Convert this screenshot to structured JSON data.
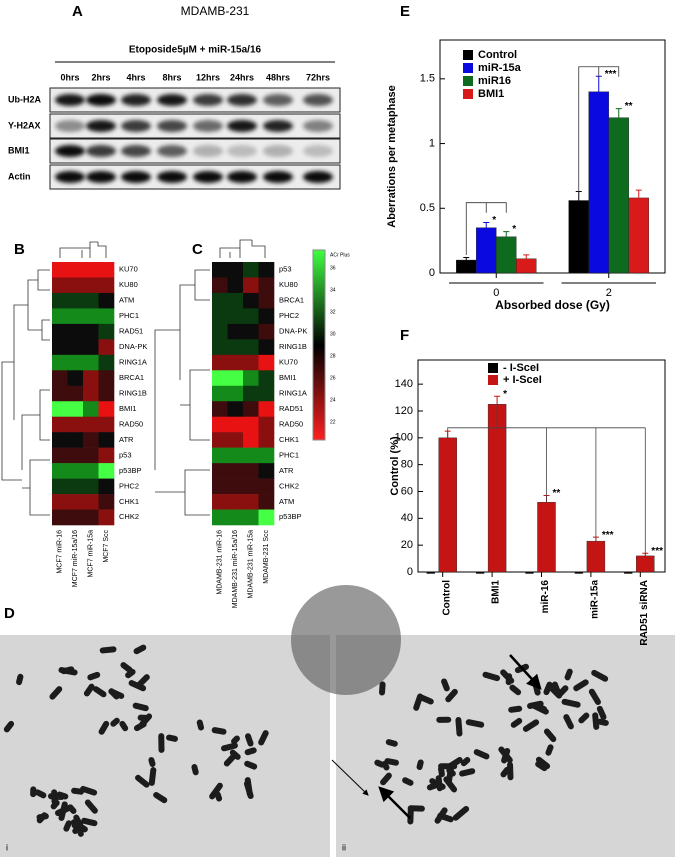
{
  "panel_labels": [
    "A",
    "B",
    "C",
    "D",
    "E",
    "F"
  ],
  "blot": {
    "cell_line": "MDAMB-231",
    "treatment": "Etoposide5µM + miR-15a/16",
    "timepoints": [
      "0hrs",
      "2hrs",
      "4hrs",
      "8hrs",
      "12hrs",
      "24hrs",
      "48hrs",
      "72hrs"
    ],
    "proteins": [
      "Ub-H2A",
      "Y-H2AX",
      "BMI1",
      "Actin"
    ]
  },
  "heatmap_b": {
    "rows": [
      "KU70",
      "KU80",
      "ATM",
      "PHC1",
      "RAD51",
      "DNA-PK",
      "RING1A",
      "BRCA1",
      "RING1B",
      "BMI1",
      "RAD50",
      "ATR",
      "p53",
      "p53BP",
      "PHC2",
      "CHK1",
      "CHK2"
    ],
    "columns": [
      "MCF7 miR-16",
      "MCF7 miR-15a/16",
      "MCF7 miR-15a",
      "MCF7 Scc"
    ]
  },
  "heatmap_c": {
    "rows": [
      "p53",
      "KU80",
      "BRCA1",
      "PHC2",
      "DNA-PK",
      "RING1B",
      "KU70",
      "BMI1",
      "RING1A",
      "RAD51",
      "RAD50",
      "CHK1",
      "PHC1",
      "ATR",
      "CHK2",
      "ATM",
      "p53BP"
    ],
    "columns": [
      "MDAMB-231 miR-16",
      "MDAMB-231 miR-15a/16",
      "MDAMB-231 miR-15a",
      "MDAMB-231 Scc"
    ],
    "colorbar": {
      "title": "ACr Plus",
      "ticks": [
        36,
        34,
        32,
        30,
        28,
        26,
        24,
        22
      ]
    }
  },
  "micrographs": {
    "labels": [
      "i",
      "ii"
    ]
  },
  "chart_data": [
    {
      "type": "bar",
      "y_label": "Aberrations per metaphase",
      "x_label": "Absorbed dose (Gy)",
      "categories": [
        "0",
        "2"
      ],
      "ylim": [
        0,
        1.8
      ],
      "yticks": [
        0,
        0.5,
        1,
        1.5
      ],
      "series": [
        {
          "name": "Control",
          "color": "#000000",
          "values": [
            0.1,
            0.56
          ],
          "errors": [
            0.02,
            0.07
          ]
        },
        {
          "name": "miR-15a",
          "color": "#0a0ae0",
          "values": [
            0.35,
            1.4
          ],
          "errors": [
            0.04,
            0.12
          ],
          "significance": [
            "*",
            "***"
          ]
        },
        {
          "name": "miR16",
          "color": "#0e6a1e",
          "values": [
            0.28,
            1.2
          ],
          "errors": [
            0.04,
            0.07
          ],
          "significance": [
            "*",
            "**"
          ]
        },
        {
          "name": "BMI1",
          "color": "#d81a1a",
          "values": [
            0.11,
            0.58
          ],
          "errors": [
            0.03,
            0.06
          ]
        }
      ]
    },
    {
      "type": "bar",
      "y_label": "Control (%)",
      "categories": [
        "Control",
        "BMI1",
        "miR-16",
        "miR-15a",
        "RAD51 siRNA"
      ],
      "ylim": [
        0,
        158
      ],
      "yticks": [
        0,
        20,
        40,
        60,
        80,
        100,
        120,
        140
      ],
      "series": [
        {
          "name": "- I-SceI",
          "color": "#000000",
          "values": [
            0,
            0,
            0,
            0,
            0
          ]
        },
        {
          "name": "+ I-SceI",
          "color": "#c41414",
          "values": [
            100,
            125,
            52,
            23,
            12
          ],
          "errors": [
            5,
            6,
            5,
            3,
            2
          ],
          "significance": [
            null,
            "*",
            "**",
            "***",
            "***"
          ]
        }
      ]
    }
  ]
}
